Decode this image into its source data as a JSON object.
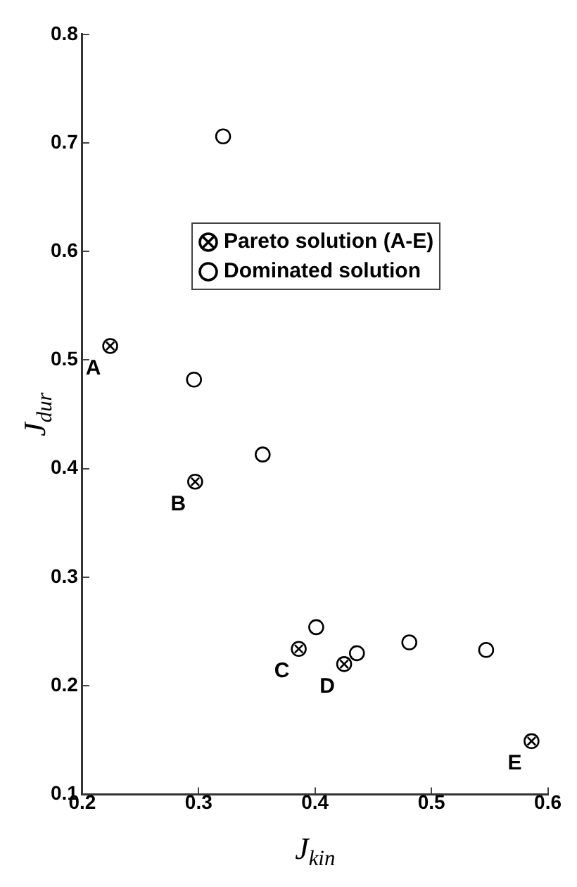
{
  "chart_data": {
    "type": "scatter",
    "xlabel": "J$_{kin}$",
    "ylabel": "J$_{dur}$",
    "series": [
      {
        "name": "Pareto solution (A-E)",
        "color": "#000000",
        "marker": "cross",
        "x": [
          0.224,
          0.297,
          0.386,
          0.425,
          0.586
        ],
        "values": [
          0.513,
          0.388,
          0.234,
          0.22,
          0.149
        ]
      },
      {
        "name": "Dominated solution",
        "color": "#000000",
        "marker": "circle",
        "x": [
          0.321,
          0.296,
          0.355,
          0.401,
          0.436,
          0.481,
          0.547
        ],
        "values": [
          0.706,
          0.482,
          0.413,
          0.254,
          0.23,
          0.24,
          0.233
        ]
      }
    ],
    "annotations": [
      {
        "text": "A",
        "x": 0.224,
        "y": 0.513
      },
      {
        "text": "B",
        "x": 0.297,
        "y": 0.388
      },
      {
        "text": "C",
        "x": 0.386,
        "y": 0.234
      },
      {
        "text": "D",
        "x": 0.425,
        "y": 0.22
      },
      {
        "text": "E",
        "x": 0.586,
        "y": 0.149
      }
    ],
    "xlim": [
      0.2,
      0.6
    ],
    "xticks": [
      0.2,
      0.3,
      0.4,
      0.5,
      0.6
    ],
    "ylim": [
      0.1,
      0.8
    ],
    "yticks": [
      0.1,
      0.2,
      0.3,
      0.4,
      0.5,
      0.6,
      0.7,
      0.8
    ],
    "grid": false,
    "legend": "top right"
  }
}
